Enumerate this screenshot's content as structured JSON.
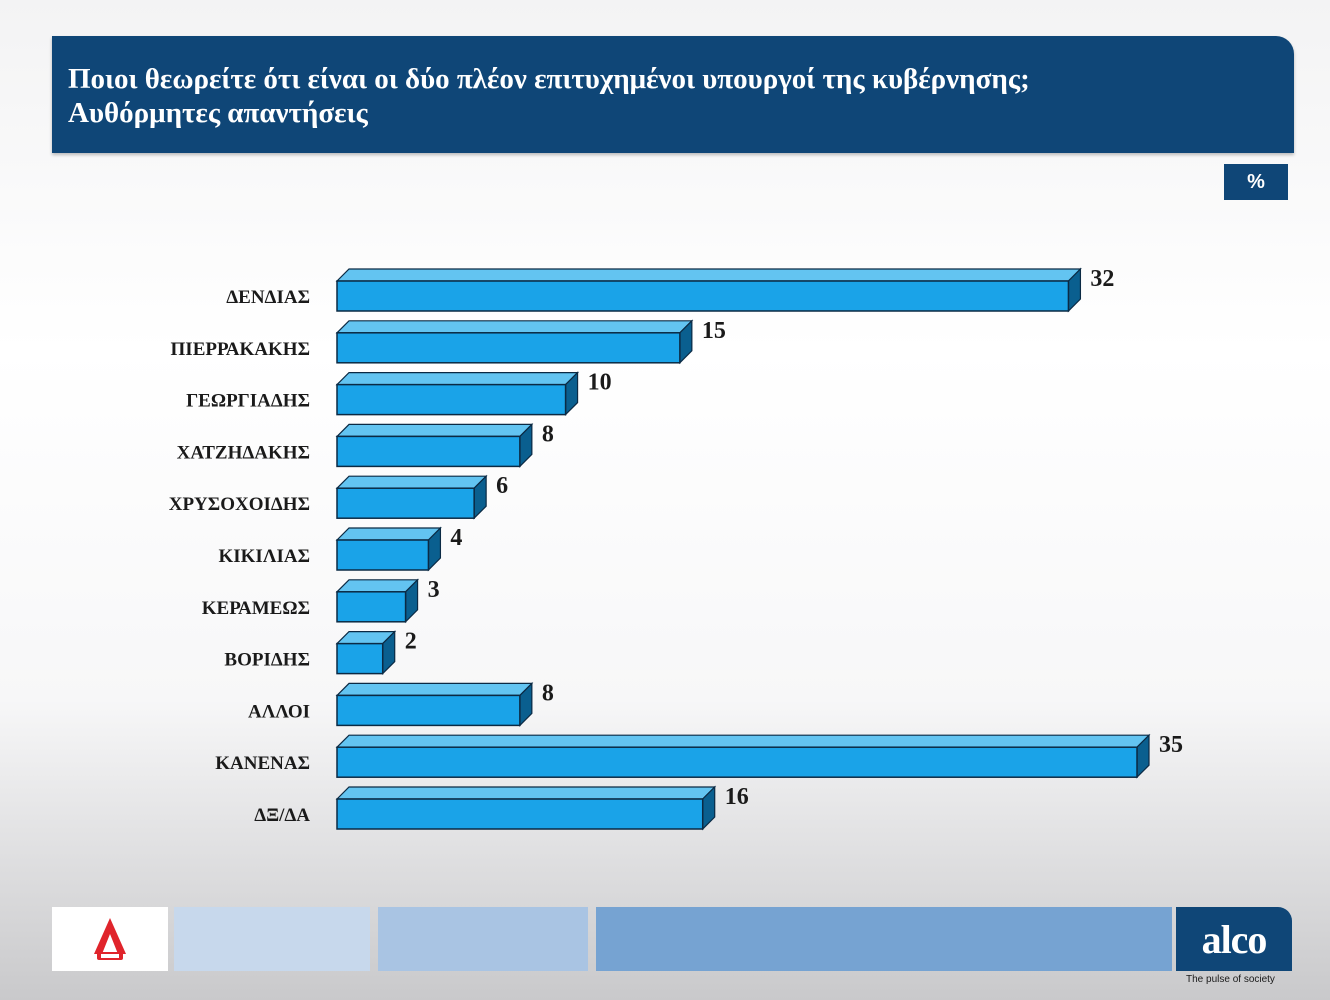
{
  "header": {
    "title_line1": "Ποιοι θεωρείτε ότι είναι οι δύο πλέον επιτυχημένοι υπουργοί της κυβέρνησης;",
    "title_line2": "Αυθόρμητες απαντήσεις"
  },
  "unit_badge": "%",
  "colors": {
    "banner": "#0f4677",
    "bar_front": "#1aa3e8",
    "bar_top": "#63c4f1",
    "bar_side": "#0a5f8f",
    "bar_edge": "#0b2a44"
  },
  "chart_data": {
    "type": "bar",
    "orientation": "horizontal",
    "title": "Ποιοι θεωρείτε ότι είναι οι δύο πλέον επιτυχημένοι υπουργοί της κυβέρνησης; Αυθόρμητες απαντήσεις",
    "unit": "%",
    "categories": [
      "ΔΕΝΔΙΑΣ",
      "ΠΙΕΡΡΑΚΑΚΗΣ",
      "ΓΕΩΡΓΙΑΔΗΣ",
      "ΧΑΤΖΗΔΑΚΗΣ",
      "ΧΡΥΣΟΧΟΙΔΗΣ",
      "ΚΙΚΙΛΙΑΣ",
      "ΚΕΡΑΜΕΩΣ",
      "ΒΟΡΙΔΗΣ",
      "ΑΛΛΟΙ",
      "ΚΑΝΕΝΑΣ",
      "ΔΞ/ΔΑ"
    ],
    "values": [
      32,
      15,
      10,
      8,
      6,
      4,
      3,
      2,
      8,
      35,
      16
    ],
    "xlim": [
      0,
      35
    ],
    "grid": false,
    "legend": "none"
  },
  "footer": {
    "logo_left": "ALPHA",
    "logo_right": "alco",
    "tagline": "The pulse of society"
  }
}
